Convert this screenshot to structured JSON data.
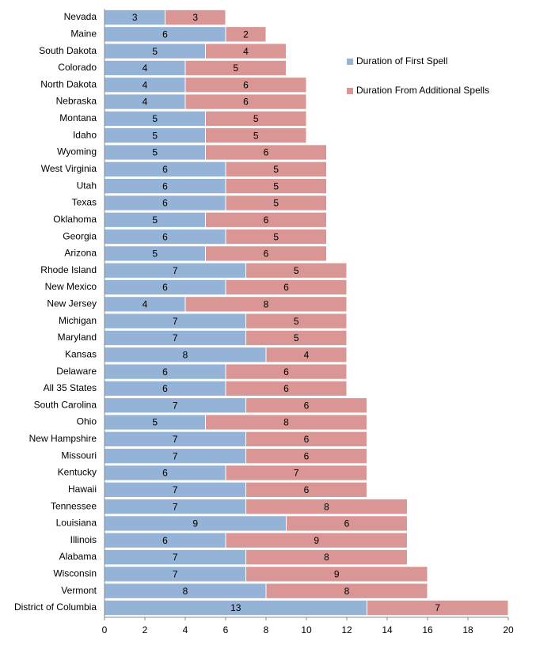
{
  "chart_data": {
    "type": "stacked-bar-horizontal",
    "categories": [
      "Nevada",
      "Maine",
      "South Dakota",
      "Colorado",
      "North Dakota",
      "Nebraska",
      "Montana",
      "Idaho",
      "Wyoming",
      "West Virginia",
      "Utah",
      "Texas",
      "Oklahoma",
      "Georgia",
      "Arizona",
      "Rhode Island",
      "New Mexico",
      "New Jersey",
      "Michigan",
      "Maryland",
      "Kansas",
      "Delaware",
      "All 35 States",
      "South Carolina",
      "Ohio",
      "New Hampshire",
      "Missouri",
      "Kentucky",
      "Hawaii",
      "Tennessee",
      "Louisiana",
      "Illinois",
      "Alabama",
      "Wisconsin",
      "Vermont",
      "District of Columbia"
    ],
    "series": [
      {
        "name": "Duration of First Spell",
        "color": "#95b3d7",
        "values": [
          3,
          6,
          5,
          4,
          4,
          4,
          5,
          5,
          5,
          6,
          6,
          6,
          5,
          6,
          5,
          7,
          6,
          4,
          7,
          7,
          8,
          6,
          6,
          7,
          5,
          7,
          7,
          6,
          7,
          7,
          9,
          6,
          7,
          7,
          8,
          13
        ]
      },
      {
        "name": "Duration From Additional Spells",
        "color": "#d99694",
        "values": [
          3,
          2,
          4,
          5,
          6,
          6,
          5,
          5,
          6,
          5,
          5,
          5,
          6,
          5,
          6,
          5,
          6,
          8,
          5,
          5,
          4,
          6,
          6,
          6,
          8,
          6,
          6,
          7,
          6,
          8,
          6,
          9,
          8,
          9,
          8,
          7
        ]
      }
    ],
    "xlim": [
      0,
      20
    ],
    "xticks": [
      0,
      2,
      4,
      6,
      8,
      10,
      12,
      14,
      16,
      18,
      20
    ],
    "legend": "upper-right"
  }
}
